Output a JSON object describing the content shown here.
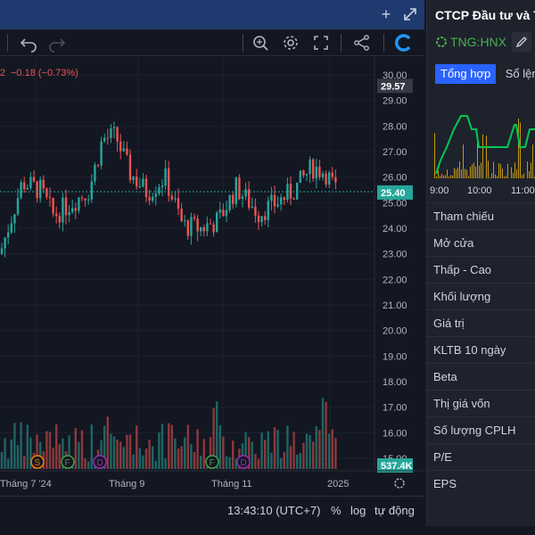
{
  "legend": {
    "change": "−0.18 (−0.73%)",
    "partial_prefix": "2"
  },
  "price_axis": {
    "ticks": [
      "30.00",
      "29.00",
      "28.00",
      "27.00",
      "26.00",
      "25.00",
      "24.00",
      "23.00",
      "22.00",
      "21.00",
      "20.00",
      "19.00",
      "18.00",
      "17.00",
      "16.00",
      "15.00"
    ],
    "high_label": "29.57",
    "last_label": "25.40",
    "volume_label": "537.4K"
  },
  "time_axis": {
    "ticks": [
      "Tháng 7 '24",
      "Tháng 9",
      "Tháng 11",
      "2025"
    ]
  },
  "events": [
    {
      "label": "S",
      "color": "#f57c00"
    },
    {
      "label": "F",
      "color": "#43a047"
    },
    {
      "label": "D",
      "color": "#9c27b0"
    },
    {
      "label": "F",
      "color": "#43a047"
    },
    {
      "label": "D",
      "color": "#9c27b0"
    }
  ],
  "statusbar": {
    "time": "13:43:10 (UTC+7)",
    "percent": "%",
    "log": "log",
    "auto": "tự động"
  },
  "side_panel": {
    "title": "CTCP Đầu tư và T",
    "ticker": "TNG:HNX",
    "tabs": [
      "Tổng hợp",
      "Sổ lệnh"
    ],
    "intraday_time_labels": [
      "9:00",
      "10:00",
      "11:00"
    ],
    "fields": [
      "Tham chiếu",
      "Mở cửa",
      "Thấp - Cao",
      "Khối lượng",
      "Giá trị",
      "KLTB 10 ngày",
      "Beta",
      "Thị giá vốn",
      "Số lượng CPLH",
      "P/E",
      "EPS"
    ]
  },
  "colors": {
    "up": "#26a69a",
    "down": "#ef5350",
    "bg": "#131722",
    "panel": "#1e222d",
    "accent": "#2962ff"
  },
  "icons": [
    "plus-icon",
    "expand-icon",
    "undo-icon",
    "redo-icon",
    "search-zoom-icon",
    "gear-icon",
    "fullscreen-icon",
    "share-icon",
    "logo-c-icon",
    "pencil-icon",
    "settings-circle-icon"
  ]
}
